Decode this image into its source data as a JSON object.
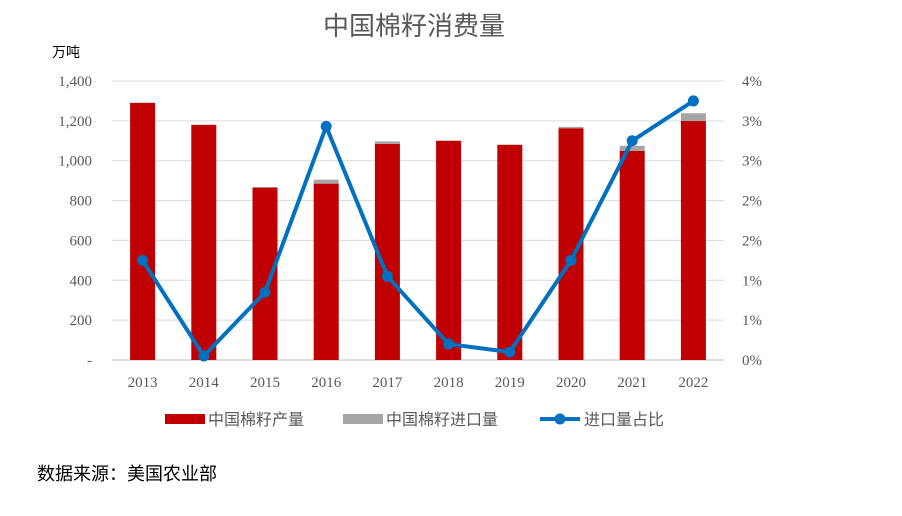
{
  "chart_data": {
    "type": "bar",
    "title": "中国棉籽消费量",
    "y_unit": "万吨",
    "categories": [
      "2013",
      "2014",
      "2015",
      "2016",
      "2017",
      "2018",
      "2019",
      "2020",
      "2021",
      "2022"
    ],
    "series": [
      {
        "name": "中国棉籽产量",
        "kind": "bar",
        "stack": "a",
        "color": "#C00000",
        "values": [
          1290,
          1180,
          865,
          885,
          1085,
          1100,
          1080,
          1163,
          1050,
          1200
        ]
      },
      {
        "name": "中国棉籽进口量",
        "kind": "bar",
        "stack": "a",
        "color": "#A6A6A6",
        "values": [
          2,
          1,
          3,
          20,
          12,
          2,
          1,
          7,
          25,
          38
        ]
      },
      {
        "name": "进口量占比",
        "kind": "line",
        "axis": "right",
        "color": "#0070C0",
        "values": [
          0.0125,
          0.0005,
          0.0085,
          0.0293,
          0.0105,
          0.002,
          0.001,
          0.0125,
          0.0275,
          0.0325
        ]
      }
    ],
    "ylim": [
      0,
      1400
    ],
    "y_ticks": [
      0,
      200,
      400,
      600,
      800,
      1000,
      1200,
      1400
    ],
    "y_tick_labels": [
      "-",
      "200",
      "400",
      "600",
      "800",
      "1,000",
      "1,200",
      "1,400"
    ],
    "y2lim": [
      0,
      0.035
    ],
    "y2_tick_labels": [
      "0%",
      "1%",
      "1%",
      "2%",
      "2%",
      "3%",
      "3%",
      "4%"
    ],
    "grid": true,
    "legend_position": "bottom"
  },
  "source_text": "数据来源：美国农业部"
}
